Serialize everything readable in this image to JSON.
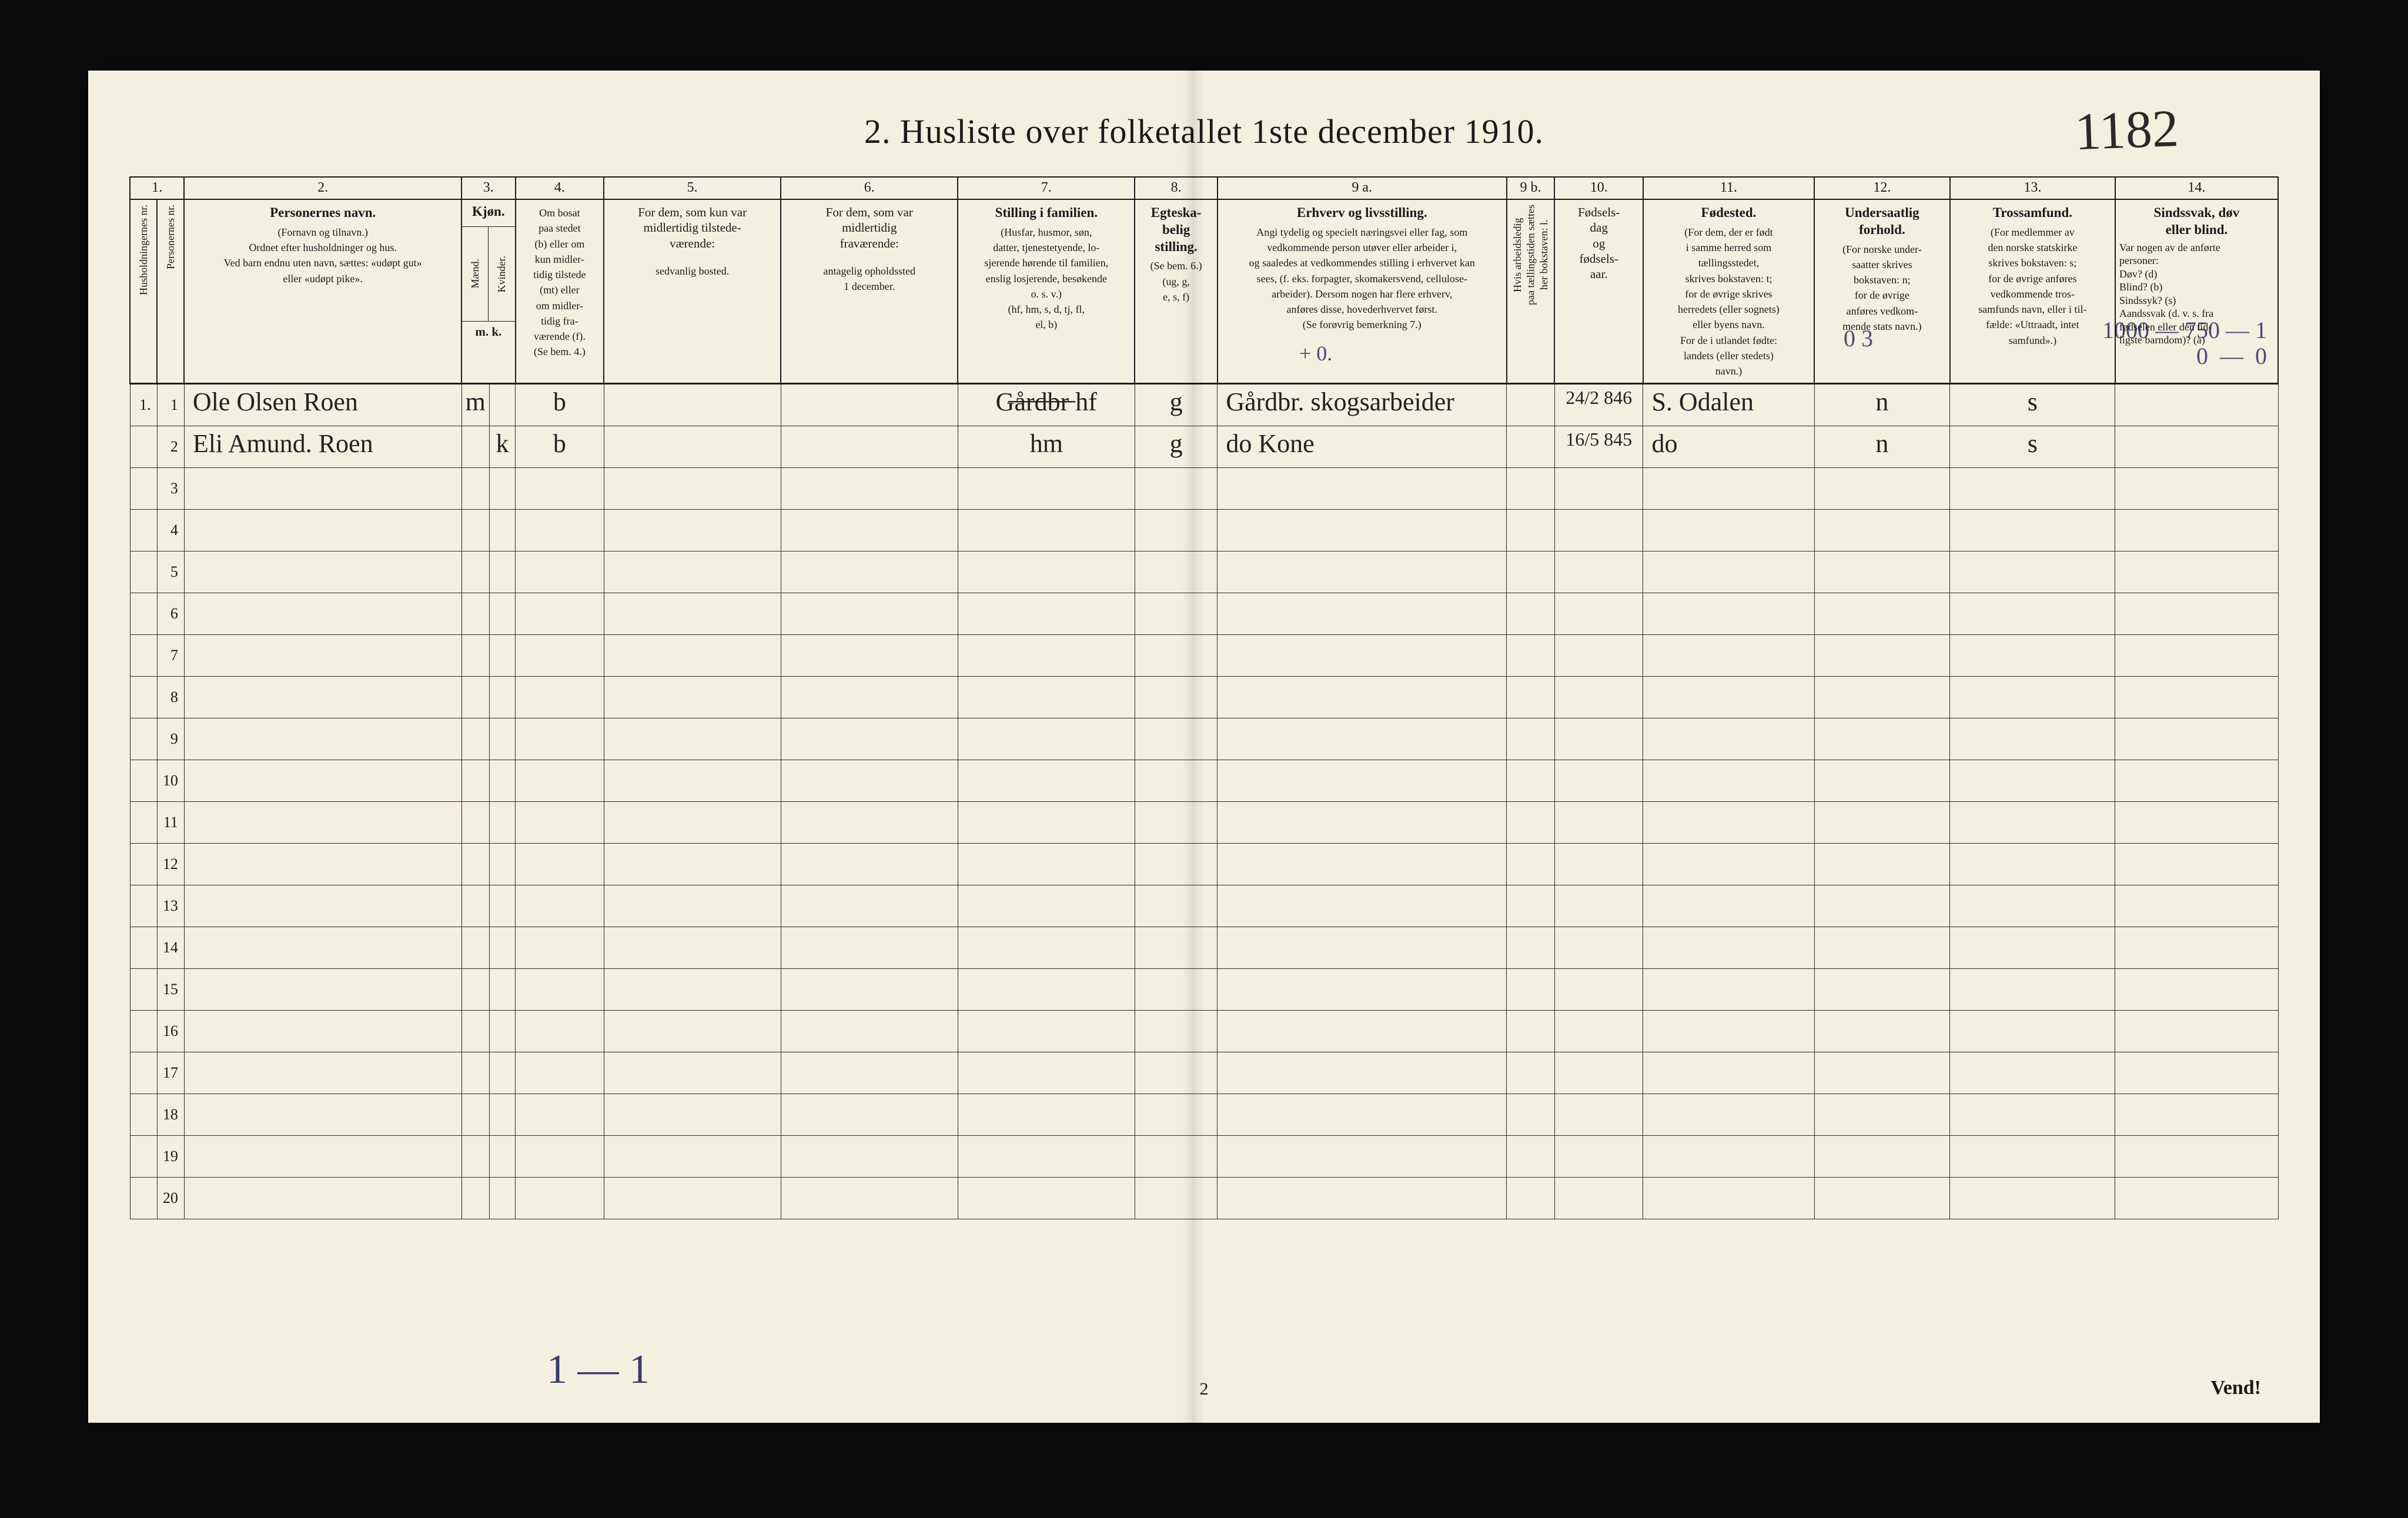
{
  "title": "2.   Husliste over folketallet 1ste december 1910.",
  "annotation_topright": "1182",
  "colnums": [
    "1.",
    "",
    "2.",
    "3.",
    "",
    "4.",
    "5.",
    "6.",
    "7.",
    "8.",
    "9 a.",
    "9 b.",
    "10.",
    "11.",
    "12.",
    "13.",
    "14."
  ],
  "headers": {
    "c1a": "Husholdningernes nr.",
    "c1b": "Personernes nr.",
    "c2_title": "Personernes navn.",
    "c2_sub": "(Fornavn og tilnavn.)\nOrdnet efter husholdninger og hus.\nVed barn endnu uten navn, sættes: «udøpt gut»\neller «udøpt pike».",
    "c3_title": "Kjøn.",
    "c3a": "Mænd.",
    "c3b": "Kvinder.",
    "c3_foot": "m.  k.",
    "c4_title": "Om bosat\npaa stedet\n(b) eller om\nkun midler-\ntidig tilstede\n(mt) eller\nom midler-\ntidig fra-\nværende (f).\n(Se bem. 4.)",
    "c5_title": "For dem, som kun var\nmidlertidig tilstede-\nværende:",
    "c5_sub": "sedvanlig bosted.",
    "c6_title": "For dem, som var\nmidlertidig\nfraværende:",
    "c6_sub": "antagelig opholdssted\n1 december.",
    "c7_title": "Stilling i familien.",
    "c7_sub": "(Husfar, husmor, søn,\ndatter, tjenestetyende, lo-\nsjerende hørende til familien,\nenslig losjerende, besøkende\no. s. v.)\n(hf, hm, s, d, tj, fl,\nel, b)",
    "c8_title": "Egteska-\nbelig\nstilling.",
    "c8_sub": "(Se bem. 6.)\n(ug, g,\ne, s, f)",
    "c9a_title": "Erhverv og livsstilling.",
    "c9a_sub": "Angi tydelig og specielt næringsvei eller fag, som\nvedkommende person utøver eller arbeider i,\nog saaledes at vedkommendes stilling i erhvervet kan\nsees, (f. eks. forpagter, skomakersvend, cellulose-\narbeider). Dersom nogen har flere erhverv,\nanføres disse, hovederhvervet først.\n(Se forøvrig bemerkning 7.)",
    "c9b": "Hvis arbeidsledig\npaa tællingstiden sættes\nher bokstaven: l.",
    "c10_title": "Fødsels-\ndag\nog\nfødsels-\naar.",
    "c11_title": "Fødested.",
    "c11_sub": "(For dem, der er født\ni samme herred som\ntællingsstedet,\nskrives bokstaven: t;\nfor de øvrige skrives\nherredets (eller sognets)\neller byens navn.\nFor de i utlandet fødte:\nlandets (eller stedets)\nnavn.)",
    "c12_title": "Undersaatlig\nforhold.",
    "c12_sub": "(For norske under-\nsaatter skrives\nbokstaven: n;\nfor de øvrige\nanføres vedkom-\nmende stats navn.)",
    "c13_title": "Trossamfund.",
    "c13_sub": "(For medlemmer av\nden norske statskirke\nskrives bokstaven: s;\nfor de øvrige anføres\nvedkommende tros-\nsamfunds navn, eller i til-\nfælde: «Uttraadt, intet\nsamfund».)",
    "c14_title": "Sindssvak, døv\neller blind.",
    "c14_sub": "Var nogen av de anførte\npersoner:\nDøv?        (d)\nBlind?      (b)\nSindssyk?  (s)\nAandssvak (d. v. s. fra\nfødselen eller den tid-\nligste barndom)?  (a)"
  },
  "rows": [
    {
      "hnr": "1.",
      "pnr": "1",
      "name": "Ole Olsen Roen",
      "sex": "m",
      "res": "b",
      "c5": "",
      "c6": "",
      "fam": "G̶å̶r̶d̶b̶r̶  hf",
      "mar": "g",
      "occ": "Gårdbr. skogsarbeider",
      "dob": "24/2 846",
      "birthpl": "S. Odalen",
      "nat": "n",
      "rel": "s",
      "c14": ""
    },
    {
      "hnr": "",
      "pnr": "2",
      "name": "Eli Amund. Roen",
      "sex": "k",
      "res": "b",
      "c5": "",
      "c6": "",
      "fam": "hm",
      "mar": "g",
      "occ": "do   Kone",
      "dob": "16/5 845",
      "birthpl": "do",
      "nat": "n",
      "rel": "s",
      "c14": ""
    }
  ],
  "blank_rows": [
    "3",
    "4",
    "5",
    "6",
    "7",
    "8",
    "9",
    "10",
    "11",
    "12",
    "13",
    "14",
    "15",
    "16",
    "17",
    "18",
    "19",
    "20"
  ],
  "footer_page": "2",
  "footer_vend": "Vend!",
  "bottom_hand": "1 — 1",
  "margin_hand": "1000 — 750 — 1\n0  —  0",
  "col03_note": "0 3",
  "cross_note": "+ 0."
}
